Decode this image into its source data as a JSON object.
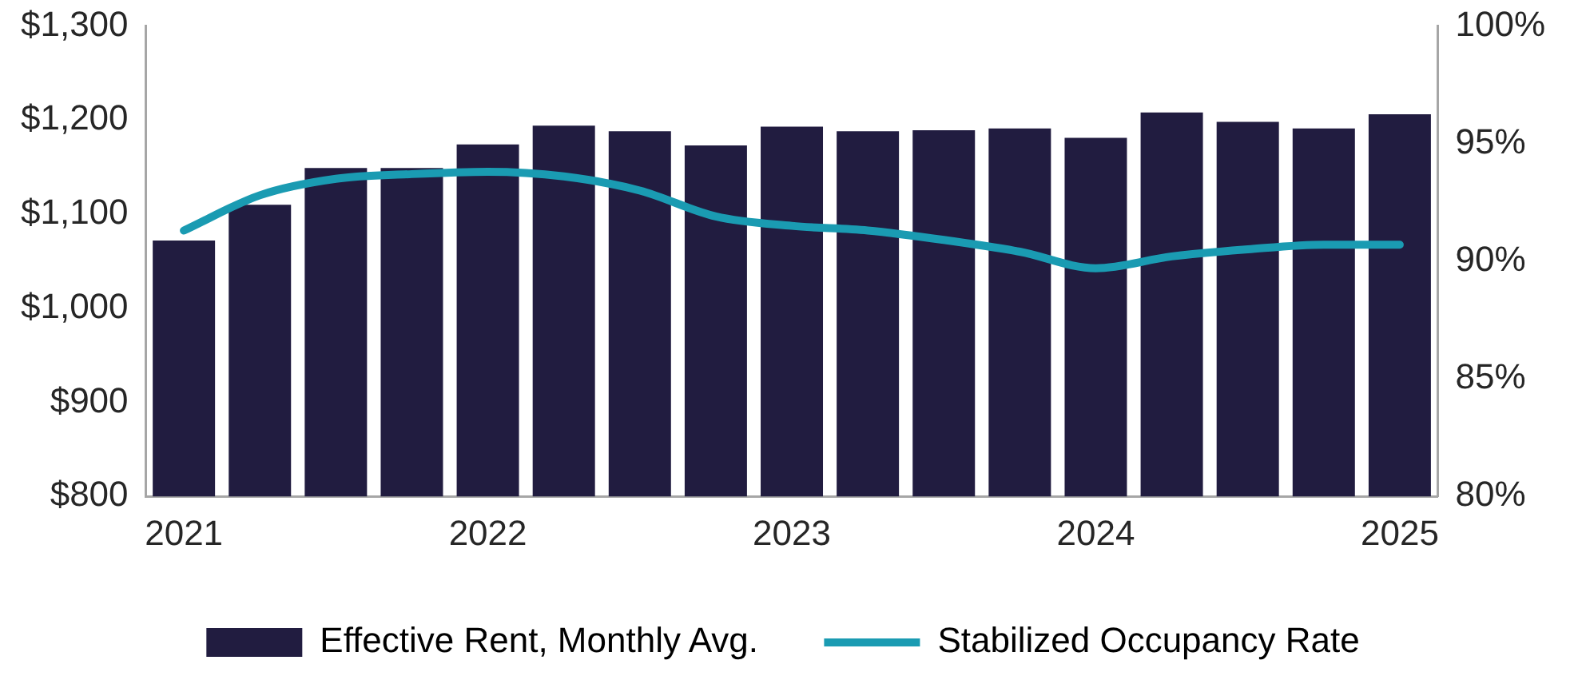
{
  "chart_data": {
    "type": "bar",
    "categories": [
      "2021",
      null,
      null,
      null,
      "2022",
      null,
      null,
      null,
      "2023",
      null,
      null,
      null,
      "2024",
      null,
      null,
      null,
      "2025"
    ],
    "series": [
      {
        "name": "Effective Rent, Monthly Avg.",
        "color": "#211c40",
        "values": [
          1072,
          1110,
          1149,
          1149,
          1174,
          1194,
          1188,
          1173,
          1193,
          1188,
          1189,
          1191,
          1181,
          1208,
          1198,
          1191,
          1206
        ]
      },
      {
        "name": "Stabilized Occupancy Rate",
        "type": "line",
        "axis": "y2",
        "color": "#1a9bb2",
        "values": [
          91.3,
          92.8,
          93.5,
          93.7,
          93.8,
          93.6,
          93.0,
          91.9,
          91.5,
          91.3,
          90.9,
          90.4,
          89.7,
          90.2,
          90.5,
          90.7,
          90.7
        ]
      }
    ],
    "ylim": [
      800,
      1300
    ],
    "yticks": [
      {
        "value": 800,
        "label": "$800"
      },
      {
        "value": 900,
        "label": "$900"
      },
      {
        "value": 1000,
        "label": "$1,000"
      },
      {
        "value": 1100,
        "label": "$1,100"
      },
      {
        "value": 1200,
        "label": "$1,200"
      },
      {
        "value": 1300,
        "label": "$1,300"
      }
    ],
    "y2lim": [
      80,
      100
    ],
    "y2ticks": [
      {
        "value": 80,
        "label": "80%"
      },
      {
        "value": 85,
        "label": "85%"
      },
      {
        "value": 90,
        "label": "90%"
      },
      {
        "value": 95,
        "label": "95%"
      },
      {
        "value": 100,
        "label": "100%"
      }
    ],
    "grid": false,
    "legend": "bottom",
    "marker": "none",
    "line_style": "solid"
  }
}
